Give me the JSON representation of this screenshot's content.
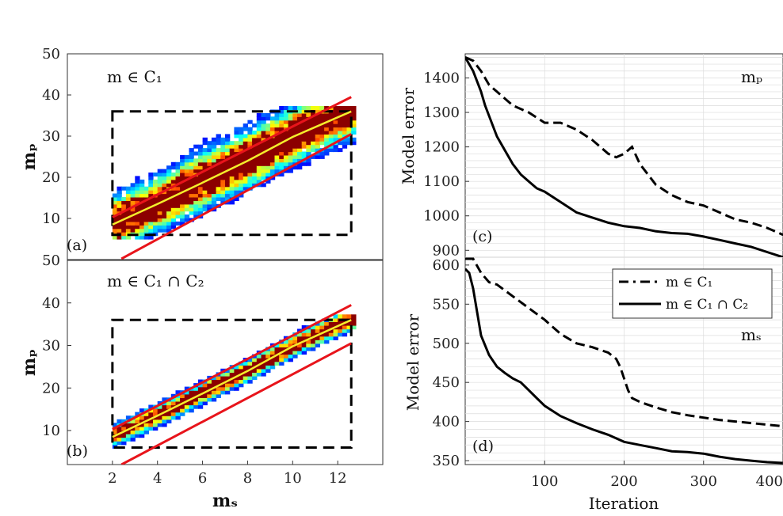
{
  "chart_data": [
    {
      "id": "a",
      "type": "heatmap",
      "panel_label": "(a)",
      "annotation": "m ∈ C₁",
      "xlabel": "",
      "ylabel": "mₚ",
      "xlim": [
        0,
        14
      ],
      "ylim": [
        0,
        50
      ],
      "xticks": [],
      "yticks": [
        "10",
        "20",
        "30",
        "40",
        "50"
      ],
      "box": {
        "x": [
          2,
          12.6
        ],
        "y": [
          6,
          36
        ]
      },
      "bounds": {
        "upper": [
          [
            2,
            10.3
          ],
          [
            12.6,
            39.5
          ]
        ],
        "lower": [
          [
            2.4,
            0.2
          ],
          [
            12.6,
            30.5
          ]
        ]
      },
      "trend": [
        [
          2,
          8.5
        ],
        [
          4,
          13.5
        ],
        [
          6,
          18.7
        ],
        [
          8,
          24
        ],
        [
          10,
          29.8
        ],
        [
          12.6,
          36
        ]
      ],
      "density_spread": 7
    },
    {
      "id": "b",
      "type": "heatmap",
      "panel_label": "(b)",
      "annotation": "m ∈ C₁ ∩ C₂",
      "xlabel": "mₛ",
      "ylabel": "mₚ",
      "xlim": [
        0,
        14
      ],
      "ylim": [
        2,
        50
      ],
      "xticks": [
        "2",
        "4",
        "6",
        "8",
        "10",
        "12"
      ],
      "yticks": [
        "10",
        "20",
        "30",
        "40",
        "50"
      ],
      "box": {
        "x": [
          2,
          12.6
        ],
        "y": [
          6,
          36
        ]
      },
      "bounds": {
        "upper": [
          [
            2,
            10.3
          ],
          [
            12.6,
            39.5
          ]
        ],
        "lower": [
          [
            2.4,
            2
          ],
          [
            12.6,
            30.5
          ]
        ]
      },
      "trend": [
        [
          2,
          8.5
        ],
        [
          4,
          13.5
        ],
        [
          6,
          18.7
        ],
        [
          8,
          24
        ],
        [
          10,
          29.8
        ],
        [
          12.6,
          36
        ]
      ],
      "density_spread": 2.6
    },
    {
      "id": "c",
      "type": "line",
      "panel_label": "(c)",
      "annotation": "mₚ",
      "ylabel": "Model error",
      "xlim": [
        0,
        400
      ],
      "ylim": [
        880,
        1470
      ],
      "yticks": [
        "900",
        "1000",
        "1100",
        "1200",
        "1300",
        "1400"
      ],
      "series": [
        {
          "name": "m ∈ C₁",
          "style": "dashed",
          "x": [
            0,
            10,
            20,
            30,
            40,
            60,
            80,
            100,
            120,
            140,
            160,
            180,
            190,
            200,
            210,
            220,
            240,
            260,
            280,
            300,
            320,
            340,
            360,
            380,
            400
          ],
          "y": [
            1460,
            1450,
            1420,
            1380,
            1360,
            1320,
            1300,
            1270,
            1270,
            1250,
            1220,
            1180,
            1170,
            1180,
            1200,
            1150,
            1090,
            1060,
            1040,
            1030,
            1010,
            990,
            980,
            965,
            945
          ]
        },
        {
          "name": "m ∈ C₁ ∩ C₂",
          "style": "solid",
          "x": [
            0,
            5,
            10,
            15,
            20,
            25,
            30,
            35,
            40,
            50,
            60,
            70,
            80,
            90,
            100,
            120,
            140,
            160,
            180,
            200,
            220,
            240,
            260,
            280,
            300,
            320,
            340,
            360,
            380,
            400
          ],
          "y": [
            1460,
            1440,
            1420,
            1390,
            1360,
            1320,
            1290,
            1260,
            1230,
            1190,
            1150,
            1120,
            1100,
            1080,
            1070,
            1040,
            1010,
            995,
            980,
            970,
            965,
            955,
            950,
            948,
            940,
            930,
            920,
            910,
            895,
            880
          ]
        }
      ]
    },
    {
      "id": "d",
      "type": "line",
      "panel_label": "(d)",
      "annotation": "mₛ",
      "xlabel": "Iteration",
      "ylabel": "Model error",
      "xlim": [
        0,
        400
      ],
      "ylim": [
        345,
        610
      ],
      "xticks": [
        "100",
        "200",
        "300",
        "400"
      ],
      "yticks": [
        "350",
        "400",
        "450",
        "500",
        "550",
        "600"
      ],
      "series": [
        {
          "name": "m ∈ C₁",
          "style": "dashed",
          "x": [
            0,
            10,
            20,
            30,
            40,
            60,
            80,
            100,
            120,
            140,
            160,
            180,
            190,
            195,
            200,
            205,
            210,
            220,
            240,
            260,
            280,
            300,
            320,
            340,
            360,
            380,
            400
          ],
          "y": [
            608,
            608,
            590,
            578,
            575,
            560,
            545,
            530,
            512,
            500,
            495,
            488,
            480,
            470,
            455,
            440,
            430,
            425,
            418,
            412,
            408,
            405,
            402,
            400,
            398,
            396,
            394
          ]
        },
        {
          "name": "m ∈ C₁ ∩ C₂",
          "style": "solid",
          "x": [
            0,
            5,
            10,
            15,
            20,
            30,
            40,
            50,
            60,
            70,
            80,
            90,
            100,
            120,
            140,
            160,
            180,
            200,
            220,
            240,
            260,
            280,
            300,
            320,
            340,
            360,
            380,
            400
          ],
          "y": [
            595,
            590,
            570,
            540,
            510,
            485,
            470,
            462,
            455,
            450,
            440,
            430,
            420,
            407,
            398,
            390,
            383,
            374,
            370,
            366,
            362,
            361,
            359,
            355,
            352,
            350,
            348,
            347
          ]
        }
      ]
    }
  ],
  "legend": {
    "dashed_label": "m ∈ C₁",
    "solid_label": "m ∈ C₁ ∩ C₂"
  },
  "colors": {
    "bound": "#e8141b",
    "trend": "#f4ee2c",
    "box": "#000000",
    "line": "#000000",
    "grid": "#dcdcdc"
  }
}
